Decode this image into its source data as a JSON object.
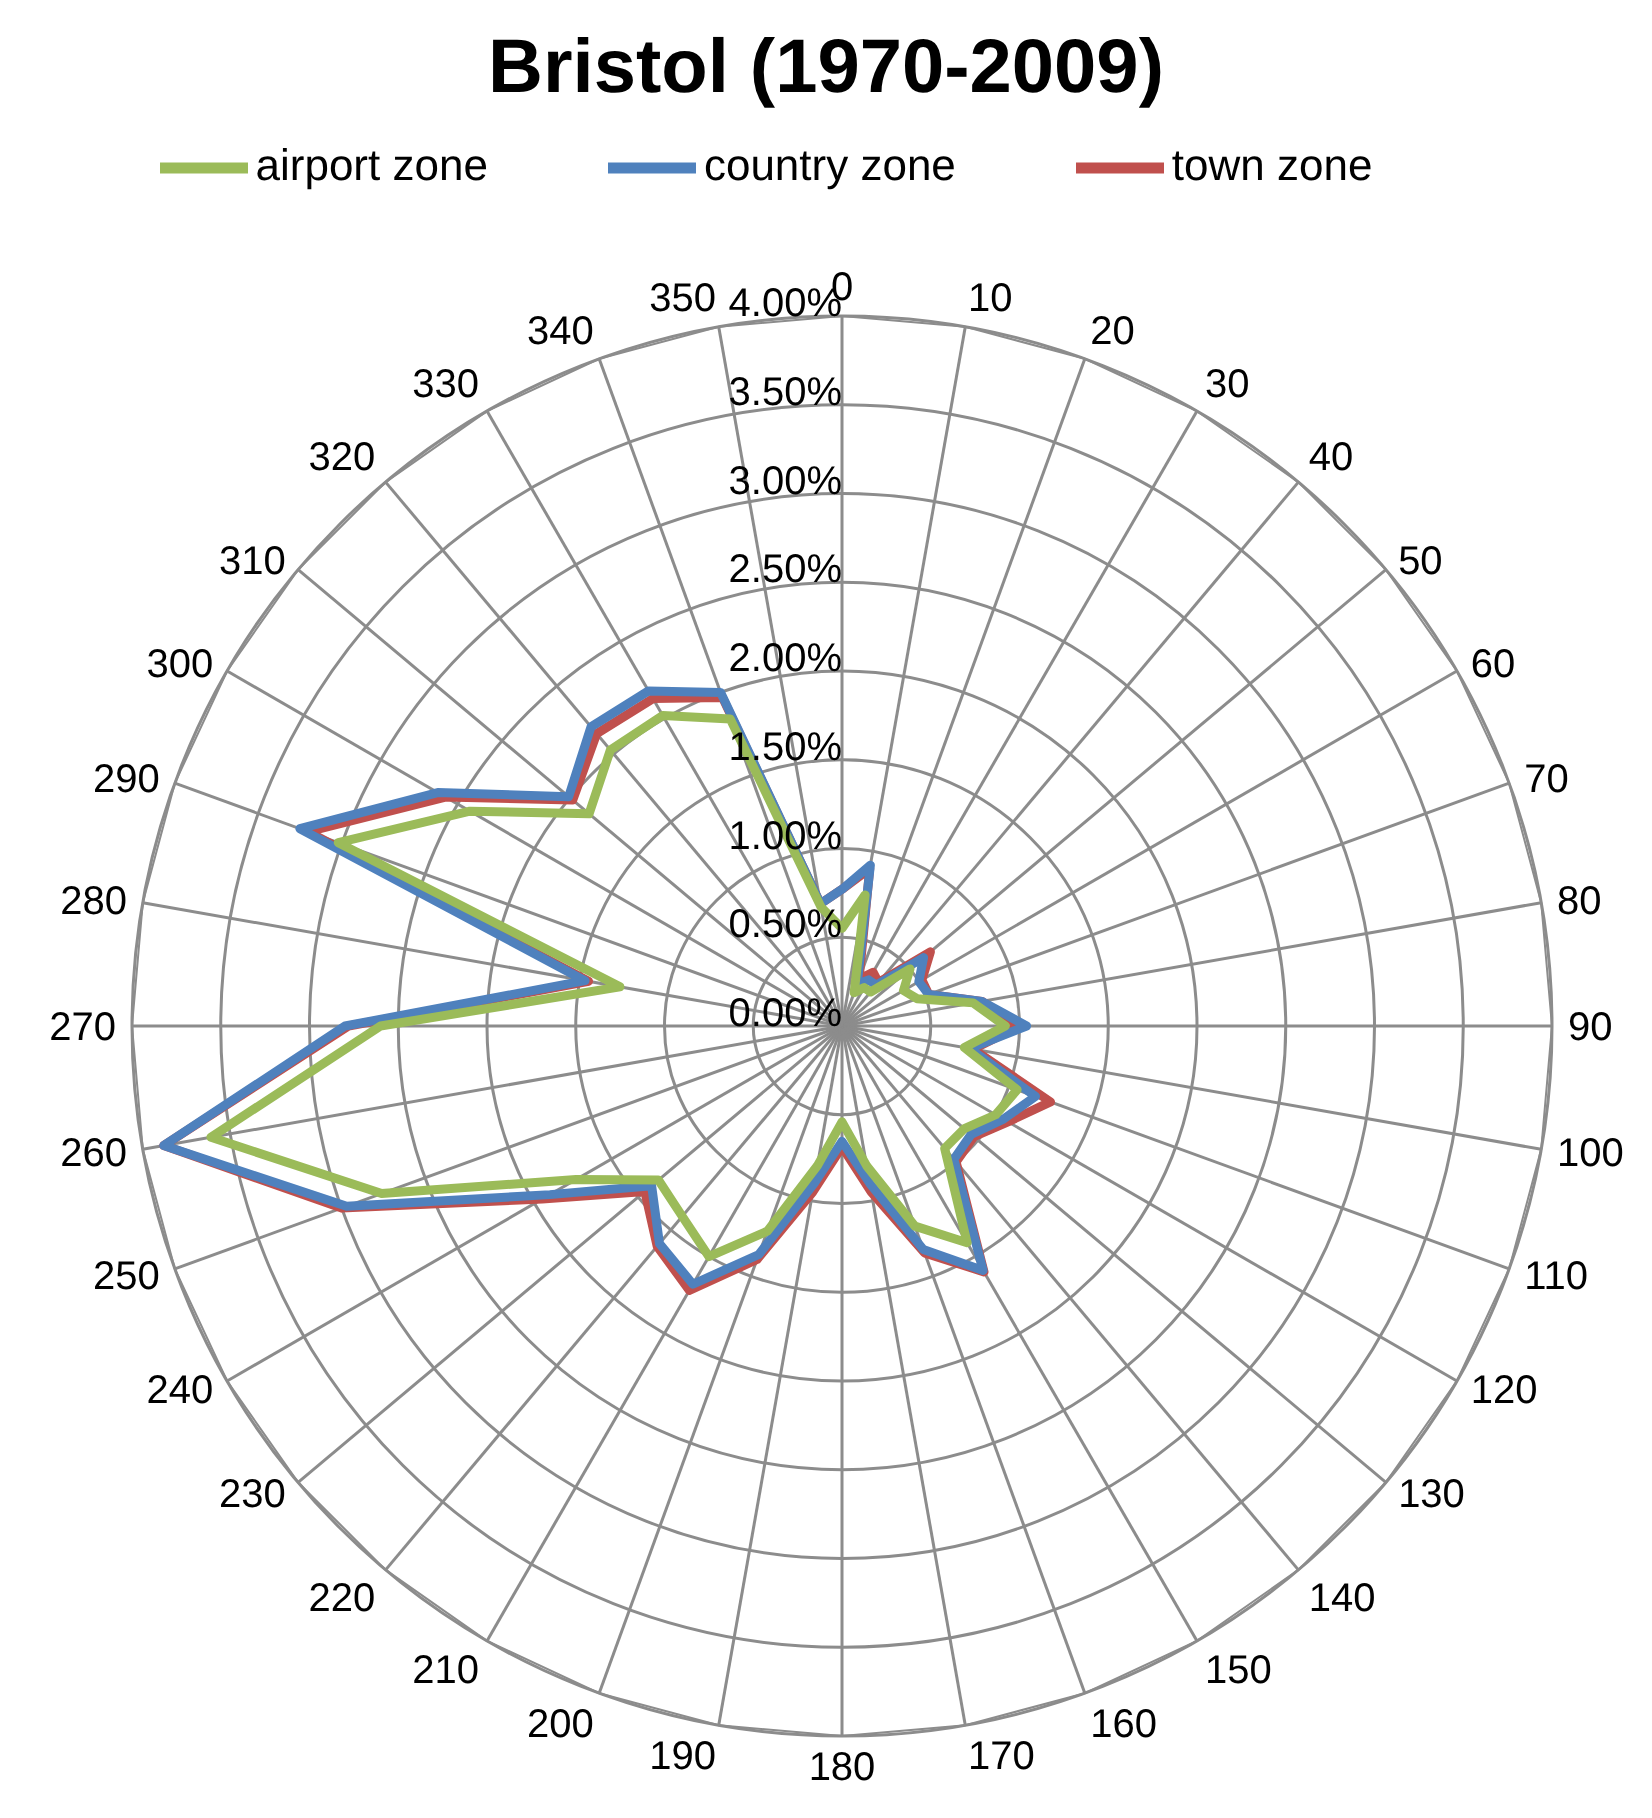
{
  "chart_data": {
    "type": "radar",
    "title": "Bristol (1970-2009)",
    "categories": [
      "0",
      "10",
      "20",
      "30",
      "40",
      "50",
      "60",
      "70",
      "80",
      "90",
      "100",
      "110",
      "120",
      "130",
      "140",
      "150",
      "160",
      "170",
      "180",
      "190",
      "200",
      "210",
      "220",
      "230",
      "240",
      "250",
      "260",
      "270",
      "280",
      "290",
      "300",
      "310",
      "320",
      "330",
      "340",
      "350"
    ],
    "series": [
      {
        "name": "town zone",
        "color": "#c0504d",
        "values": [
          0.77,
          0.9,
          0.28,
          0.35,
          0.32,
          0.65,
          0.52,
          0.52,
          0.8,
          1.0,
          0.75,
          1.25,
          1.08,
          0.97,
          1.0,
          1.6,
          1.36,
          0.95,
          0.68,
          0.95,
          1.4,
          1.72,
          1.62,
          1.45,
          1.95,
          3.0,
          3.88,
          2.78,
          1.45,
          3.2,
          2.58,
          1.98,
          2.15,
          2.13,
          1.97,
          0.7
        ]
      },
      {
        "name": "country zone",
        "color": "#4f81bd",
        "values": [
          0.77,
          0.92,
          0.25,
          0.3,
          0.3,
          0.6,
          0.5,
          0.52,
          0.8,
          1.04,
          0.73,
          1.16,
          1.05,
          0.95,
          0.98,
          1.59,
          1.34,
          0.9,
          0.65,
          0.9,
          1.37,
          1.68,
          1.6,
          1.4,
          1.9,
          2.97,
          3.88,
          2.8,
          1.47,
          3.25,
          2.63,
          2.01,
          2.2,
          2.18,
          2.0,
          0.7
        ]
      },
      {
        "name": "airport zone",
        "color": "#9bbb59",
        "values": [
          0.55,
          0.75,
          0.2,
          0.25,
          0.25,
          0.5,
          0.4,
          0.45,
          0.75,
          0.92,
          0.7,
          1.05,
          1.0,
          0.9,
          0.9,
          1.41,
          1.2,
          0.8,
          0.54,
          0.8,
          1.23,
          1.5,
          1.4,
          1.35,
          1.73,
          2.76,
          3.61,
          2.6,
          1.27,
          3.02,
          2.42,
          1.86,
          2.03,
          2.02,
          1.84,
          0.68
        ]
      }
    ],
    "ylim": [
      0,
      4
    ],
    "yticks": [
      {
        "value": 0,
        "label": "0.00%"
      },
      {
        "value": 0.5,
        "label": "0.50%"
      },
      {
        "value": 1,
        "label": "1.00%"
      },
      {
        "value": 1.5,
        "label": "1.50%"
      },
      {
        "value": 2,
        "label": "2.00%"
      },
      {
        "value": 2.5,
        "label": "2.50%"
      },
      {
        "value": 3,
        "label": "3.00%"
      },
      {
        "value": 3.5,
        "label": "3.50%"
      },
      {
        "value": 4,
        "label": "4.00%"
      }
    ],
    "grid": true,
    "legend": "top",
    "marker": "none",
    "line_style": "solid"
  }
}
